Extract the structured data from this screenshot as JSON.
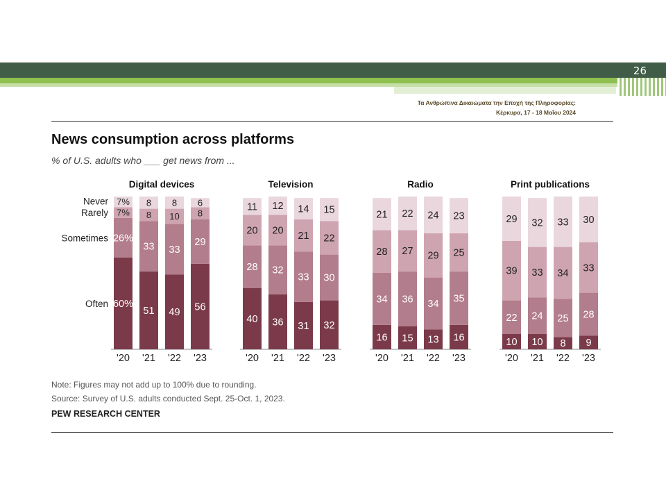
{
  "slide": {
    "page_number": "26",
    "conference_line1": "Τα Ανθρώπινα Δικαιώματα την Εποχή της Πληροφορίας:",
    "conference_line2": "Κέρκυρα, 17 - 18 Μαΐου 2024",
    "colors": {
      "header_dark": "#415c47",
      "header_green": "#8fc04f",
      "header_light": "#c5dfa6"
    }
  },
  "chart_data": {
    "type": "bar",
    "stacked": true,
    "title": "News consumption across platforms",
    "subtitle": "% of U.S. adults who ___ get news from ...",
    "categories": [
      "'20",
      "'21",
      "'22",
      "'23"
    ],
    "segments": [
      "Often",
      "Sometimes",
      "Rarely",
      "Never"
    ],
    "segment_labels": {
      "Never": "Never",
      "Rarely": "Rarely",
      "Sometimes": "Sometimes",
      "Often": "Often"
    },
    "colors": {
      "Often": "#7b3a4a",
      "Sometimes": "#b27d8c",
      "Rarely": "#cfa4b1",
      "Never": "#ead7dd"
    },
    "panels": [
      {
        "name": "Digital devices",
        "values": {
          "Often": [
            60,
            51,
            49,
            56
          ],
          "Sometimes": [
            26,
            33,
            33,
            29
          ],
          "Rarely": [
            7,
            8,
            10,
            8
          ],
          "Never": [
            7,
            8,
            8,
            6
          ]
        },
        "first_bar_labels": {
          "Often": "60%",
          "Sometimes": "26%",
          "Rarely": "7%",
          "Never": "7%"
        }
      },
      {
        "name": "Television",
        "values": {
          "Often": [
            40,
            36,
            31,
            32
          ],
          "Sometimes": [
            28,
            32,
            33,
            30
          ],
          "Rarely": [
            20,
            20,
            21,
            22
          ],
          "Never": [
            11,
            12,
            14,
            15
          ]
        }
      },
      {
        "name": "Radio",
        "values": {
          "Often": [
            16,
            15,
            13,
            16
          ],
          "Sometimes": [
            34,
            36,
            34,
            35
          ],
          "Rarely": [
            28,
            27,
            29,
            25
          ],
          "Never": [
            21,
            22,
            24,
            23
          ]
        }
      },
      {
        "name": "Print publications",
        "values": {
          "Often": [
            10,
            10,
            8,
            9
          ],
          "Sometimes": [
            22,
            24,
            25,
            28
          ],
          "Rarely": [
            39,
            33,
            34,
            33
          ],
          "Never": [
            29,
            32,
            33,
            30
          ]
        }
      }
    ],
    "ylim": [
      0,
      100
    ],
    "grid": false
  },
  "footer": {
    "note": "Note: Figures may not add up to 100% due to rounding.",
    "source": "Source: Survey of U.S. adults conducted Sept. 25-Oct. 1, 2023.",
    "brand": "PEW RESEARCH CENTER"
  }
}
